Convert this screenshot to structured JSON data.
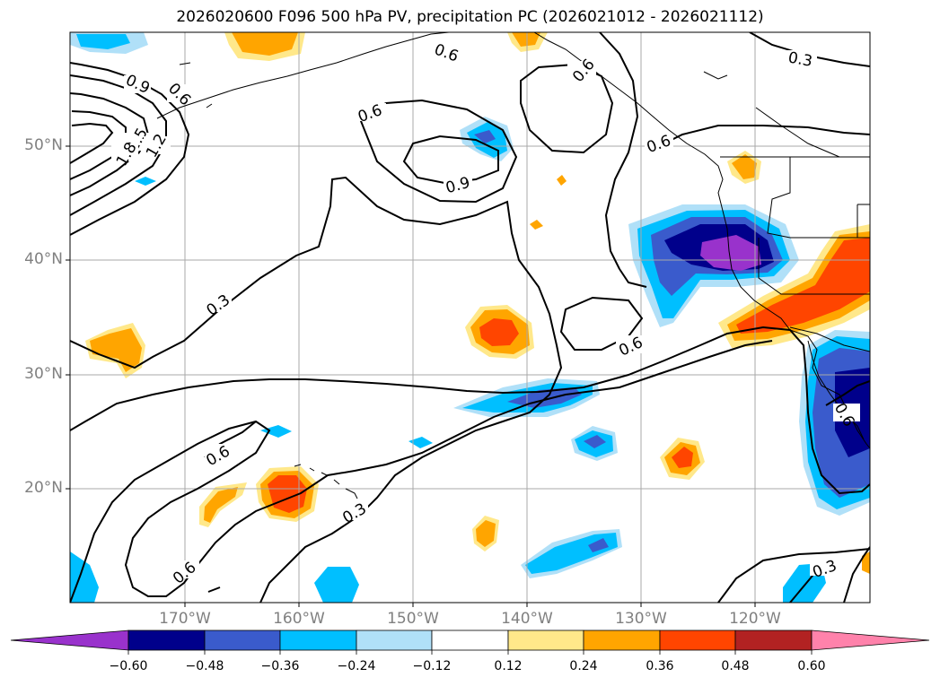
{
  "title": "2026020600 F096 500 hPa PV, precipitation PC (2026021012 - 2026021112)",
  "lat_labels": [
    "50°N",
    "40°N",
    "30°N",
    "20°N"
  ],
  "lon_labels": [
    "170°W",
    "160°W",
    "150°W",
    "140°W",
    "130°W",
    "120°W"
  ],
  "contour_labels": [
    "0.9",
    "0.6",
    "1.5",
    "1.8",
    "1.2",
    "0.6",
    "0.6",
    "0.9",
    "0.6",
    "0.6",
    "0.3",
    "0.3",
    "0.6",
    "0.6",
    "0.3",
    "0.6",
    "0.3",
    "0.6"
  ],
  "colorbar": {
    "tick_labels": [
      "−0.60",
      "−0.48",
      "−0.36",
      "−0.24",
      "−0.12",
      "0.12",
      "0.24",
      "0.36",
      "0.48",
      "0.60"
    ],
    "colors": [
      "#9932cc",
      "#00008b",
      "#3a5bcc",
      "#00bfff",
      "#b0e0f8",
      "#ffffff",
      "#ffe88a",
      "#ffa500",
      "#ff4500",
      "#b22222",
      "#ff82ab"
    ]
  },
  "map": {
    "extent_lon": [
      -180,
      -110
    ],
    "extent_lat": [
      10,
      60
    ],
    "grid_lons": [
      -170,
      -160,
      -150,
      -140,
      -130,
      -120
    ],
    "grid_lats": [
      20,
      30,
      40,
      50
    ]
  }
}
